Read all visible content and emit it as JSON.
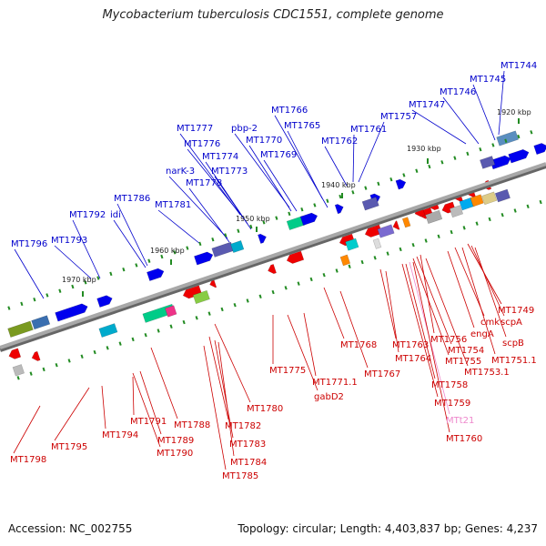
{
  "title": "Mycobacterium tuberculosis CDC1551, complete genome",
  "footer": {
    "accession": "Accession: NC_002755",
    "summary": "Topology: circular; Length: 4,403,837 bp; Genes: 4,237"
  },
  "colors": {
    "forward_gene": "#0000ee",
    "reverse_gene": "#ee0000",
    "forward_label": "#0000cc",
    "reverse_label": "#cc0000",
    "rna_label": "#ee88cc",
    "backbone": "#888888",
    "tick": "#228b22"
  },
  "kbp_markers": [
    "1920 kbp",
    "1930 kbp",
    "1940 kbp",
    "1950 kbp",
    "1960 kbp",
    "1970 kbp"
  ],
  "top_labels": [
    "MT1744",
    "MT1745",
    "MT1746",
    "MT1747",
    "MT1757",
    "MT1761",
    "MT1762",
    "MT1765",
    "MT1766",
    "pbp-2",
    "MT1770",
    "MT1769",
    "MT1777",
    "MT1776",
    "MT1774",
    "MT1773",
    "narK-3",
    "MT1778",
    "MT1781",
    "MT1786",
    "MT1792",
    "idi",
    "MT1793",
    "MT1796"
  ],
  "bottom_labels": [
    "MT1749",
    "cmk",
    "scpA",
    "engA",
    "scpB",
    "MT1751.1",
    "MT1756",
    "MT1754",
    "MT1755",
    "MT1753.1",
    "MT1763",
    "MT1764",
    "MT1758",
    "MT1759",
    "MTt21",
    "MT1760",
    "MT1768",
    "MT1767",
    "MT1775",
    "MT1771.1",
    "gabD2",
    "MT1780",
    "MT1782",
    "MT1783",
    "MT1784",
    "MT1785",
    "MT1788",
    "MT1791",
    "MT1789",
    "MT1790",
    "MT1794",
    "MT1795",
    "MT1798"
  ]
}
